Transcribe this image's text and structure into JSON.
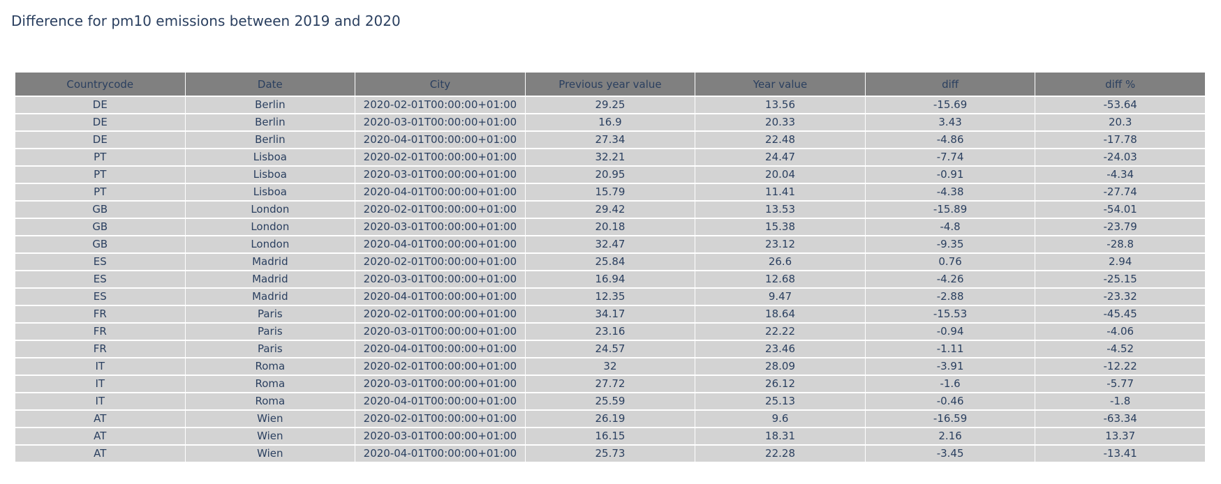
{
  "chart_data": {
    "type": "table",
    "title": "Difference for pm10 emissions between 2019 and 2020",
    "header": [
      "Countrycode",
      "Date",
      "City",
      "Previous year value",
      "Year value",
      "diff",
      "diff %"
    ],
    "rows": [
      [
        "DE",
        "Berlin",
        "2020-02-01T00:00:00+01:00",
        "29.25",
        "13.56",
        "-15.69",
        "-53.64"
      ],
      [
        "DE",
        "Berlin",
        "2020-03-01T00:00:00+01:00",
        "16.9",
        "20.33",
        "3.43",
        "20.3"
      ],
      [
        "DE",
        "Berlin",
        "2020-04-01T00:00:00+01:00",
        "27.34",
        "22.48",
        "-4.86",
        "-17.78"
      ],
      [
        "PT",
        "Lisboa",
        "2020-02-01T00:00:00+01:00",
        "32.21",
        "24.47",
        "-7.74",
        "-24.03"
      ],
      [
        "PT",
        "Lisboa",
        "2020-03-01T00:00:00+01:00",
        "20.95",
        "20.04",
        "-0.91",
        "-4.34"
      ],
      [
        "PT",
        "Lisboa",
        "2020-04-01T00:00:00+01:00",
        "15.79",
        "11.41",
        "-4.38",
        "-27.74"
      ],
      [
        "GB",
        "London",
        "2020-02-01T00:00:00+01:00",
        "29.42",
        "13.53",
        "-15.89",
        "-54.01"
      ],
      [
        "GB",
        "London",
        "2020-03-01T00:00:00+01:00",
        "20.18",
        "15.38",
        "-4.8",
        "-23.79"
      ],
      [
        "GB",
        "London",
        "2020-04-01T00:00:00+01:00",
        "32.47",
        "23.12",
        "-9.35",
        "-28.8"
      ],
      [
        "ES",
        "Madrid",
        "2020-02-01T00:00:00+01:00",
        "25.84",
        "26.6",
        "0.76",
        "2.94"
      ],
      [
        "ES",
        "Madrid",
        "2020-03-01T00:00:00+01:00",
        "16.94",
        "12.68",
        "-4.26",
        "-25.15"
      ],
      [
        "ES",
        "Madrid",
        "2020-04-01T00:00:00+01:00",
        "12.35",
        "9.47",
        "-2.88",
        "-23.32"
      ],
      [
        "FR",
        "Paris",
        "2020-02-01T00:00:00+01:00",
        "34.17",
        "18.64",
        "-15.53",
        "-45.45"
      ],
      [
        "FR",
        "Paris",
        "2020-03-01T00:00:00+01:00",
        "23.16",
        "22.22",
        "-0.94",
        "-4.06"
      ],
      [
        "FR",
        "Paris",
        "2020-04-01T00:00:00+01:00",
        "24.57",
        "23.46",
        "-1.11",
        "-4.52"
      ],
      [
        "IT",
        "Roma",
        "2020-02-01T00:00:00+01:00",
        "32",
        "28.09",
        "-3.91",
        "-12.22"
      ],
      [
        "IT",
        "Roma",
        "2020-03-01T00:00:00+01:00",
        "27.72",
        "26.12",
        "-1.6",
        "-5.77"
      ],
      [
        "IT",
        "Roma",
        "2020-04-01T00:00:00+01:00",
        "25.59",
        "25.13",
        "-0.46",
        "-1.8"
      ],
      [
        "AT",
        "Wien",
        "2020-02-01T00:00:00+01:00",
        "26.19",
        "9.6",
        "-16.59",
        "-63.34"
      ],
      [
        "AT",
        "Wien",
        "2020-03-01T00:00:00+01:00",
        "16.15",
        "18.31",
        "2.16",
        "13.37"
      ],
      [
        "AT",
        "Wien",
        "2020-04-01T00:00:00+01:00",
        "25.73",
        "22.28",
        "-3.45",
        "-13.41"
      ]
    ],
    "colors": {
      "header_fill": "#808080",
      "cell_fill": "#d3d3d3",
      "font": "#2a3f5f",
      "line": "#ffffff"
    }
  }
}
